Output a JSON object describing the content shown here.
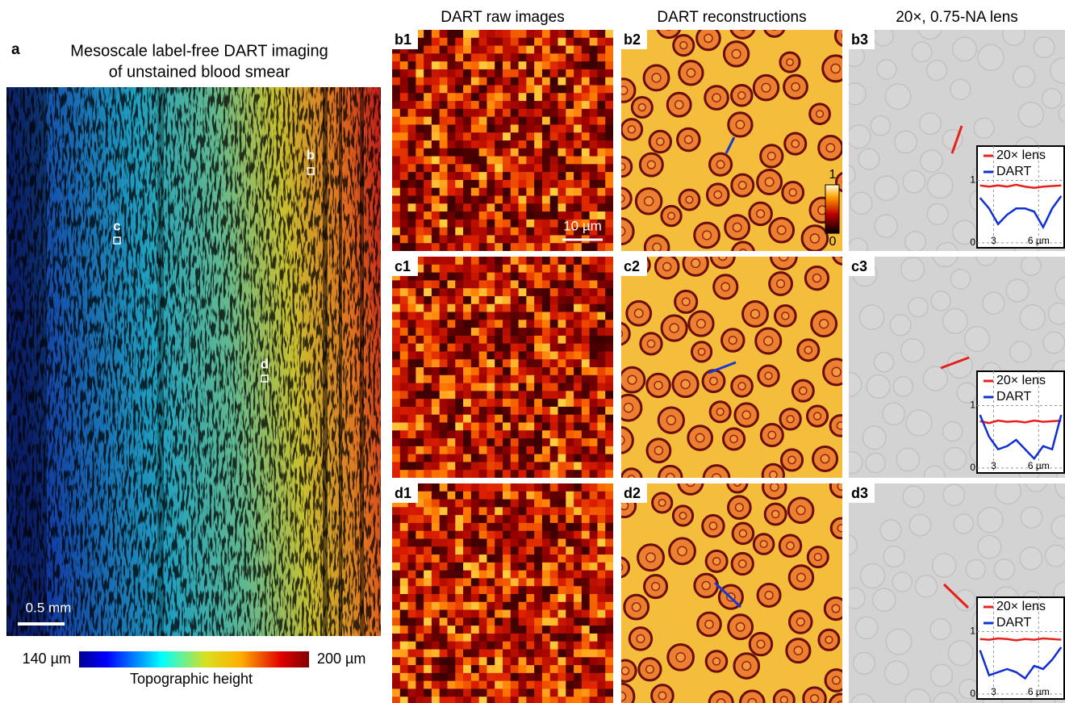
{
  "panel_a": {
    "label": "a",
    "title_lines": [
      "Mesoscale label-free DART imaging",
      "of unstained blood smear"
    ],
    "markers": [
      "b",
      "c",
      "d"
    ],
    "scale_bar": "0.5 mm",
    "colorbar": {
      "min_label": "140 µm",
      "max_label": "200 µm",
      "title": "Topographic height"
    }
  },
  "columns": [
    "DART raw images",
    "DART reconstructions",
    "20×, 0.75-NA lens"
  ],
  "scale_bar": "10 µm",
  "recon_colorbar_ticks": [
    1,
    0
  ],
  "rows": [
    {
      "labels": [
        "b1",
        "b2",
        "b3"
      ],
      "inset": {
        "type": "line",
        "x": [
          2.1,
          2.7,
          3.3,
          3.9,
          4.5,
          5.1,
          5.7,
          6.3,
          6.9,
          7.5
        ],
        "xlim": [
          1.9,
          7.7
        ],
        "ylim": [
          -0.08,
          1.55
        ],
        "xticks": [
          3,
          {
            "value": 6,
            "label": "6 µm"
          }
        ],
        "yticks": [
          0,
          1
        ],
        "grid": true,
        "series": [
          {
            "name": "20× lens",
            "color": "#e8201a",
            "values": [
              0.92,
              0.9,
              0.92,
              0.9,
              0.93,
              0.9,
              0.88,
              0.9,
              0.91,
              0.92
            ]
          },
          {
            "name": "DART",
            "color": "#1030d0",
            "values": [
              0.72,
              0.55,
              0.3,
              0.45,
              0.55,
              0.55,
              0.5,
              0.25,
              0.55,
              0.75
            ]
          }
        ]
      }
    },
    {
      "labels": [
        "c1",
        "c2",
        "c3"
      ],
      "inset": {
        "type": "line",
        "x": [
          2.1,
          2.7,
          3.3,
          3.9,
          4.5,
          5.1,
          5.7,
          6.3,
          6.9,
          7.5
        ],
        "xlim": [
          1.9,
          7.7
        ],
        "ylim": [
          -0.08,
          1.55
        ],
        "xticks": [
          3,
          {
            "value": 6,
            "label": "6 µm"
          }
        ],
        "yticks": [
          0,
          1
        ],
        "grid": true,
        "series": [
          {
            "name": "20× lens",
            "color": "#e8201a",
            "values": [
              0.75,
              0.72,
              0.76,
              0.74,
              0.75,
              0.73,
              0.76,
              0.74,
              0.75,
              0.76
            ]
          },
          {
            "name": "DART",
            "color": "#1030d0",
            "values": [
              0.85,
              0.5,
              0.3,
              0.35,
              0.45,
              0.3,
              0.15,
              0.35,
              0.3,
              0.85
            ]
          }
        ]
      }
    },
    {
      "labels": [
        "d1",
        "d2",
        "d3"
      ],
      "inset": {
        "type": "line",
        "x": [
          2.1,
          2.7,
          3.3,
          3.9,
          4.5,
          5.1,
          5.7,
          6.3,
          6.9,
          7.5
        ],
        "xlim": [
          1.9,
          7.7
        ],
        "ylim": [
          -0.08,
          1.55
        ],
        "xticks": [
          3,
          {
            "value": 6,
            "label": "6 µm"
          }
        ],
        "yticks": [
          0,
          1
        ],
        "grid": true,
        "series": [
          {
            "name": "20× lens",
            "color": "#e8201a",
            "values": [
              0.88,
              0.87,
              0.89,
              0.88,
              0.86,
              0.88,
              0.87,
              0.89,
              0.88,
              0.87
            ]
          },
          {
            "name": "DART",
            "color": "#1030d0",
            "values": [
              0.7,
              0.3,
              0.35,
              0.4,
              0.35,
              0.25,
              0.45,
              0.4,
              0.55,
              0.75
            ]
          }
        ]
      }
    }
  ]
}
